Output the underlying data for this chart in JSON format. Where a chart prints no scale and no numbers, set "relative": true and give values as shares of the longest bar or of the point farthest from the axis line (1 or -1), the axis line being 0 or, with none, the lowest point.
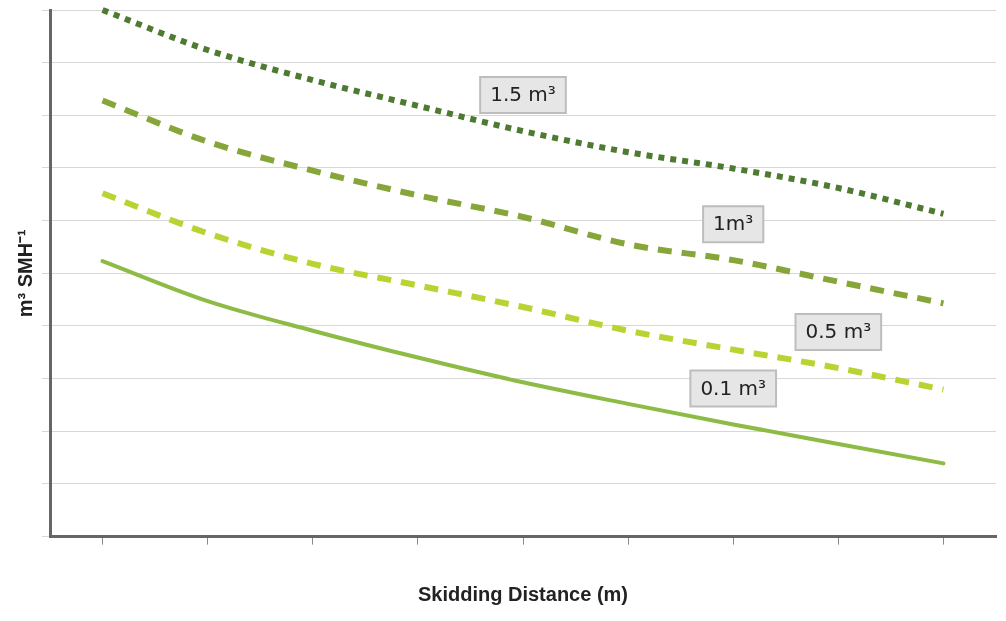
{
  "chart_data": {
    "type": "line",
    "relative": true,
    "xlabel": "Skidding Distance (m)",
    "ylabel": "m³ SMH⁻¹",
    "categories": [
      null,
      null,
      null,
      null,
      null,
      null,
      null,
      null,
      null
    ],
    "series": [
      {
        "name": "1.5 m³",
        "color": "#4f7a32",
        "line_style": "dotted",
        "values": [
          1,
          0.924,
          0.867,
          0.818,
          0.77,
          0.73,
          0.699,
          0.662,
          0.613
        ]
      },
      {
        "name": "1m³",
        "color": "#86a63a",
        "line_style": "dashed",
        "values": [
          0.828,
          0.75,
          0.695,
          0.648,
          0.607,
          0.555,
          0.525,
          0.484,
          0.443
        ]
      },
      {
        "name": "0.5 m³",
        "color": "#b8d432",
        "line_style": "dashed",
        "values": [
          0.652,
          0.576,
          0.518,
          0.477,
          0.436,
          0.391,
          0.355,
          0.32,
          0.279
        ]
      },
      {
        "name": "0.1 m³",
        "color": "#8dbb45",
        "line_style": "solid",
        "values": [
          0.523,
          0.447,
          0.391,
          0.34,
          0.293,
          0.252,
          0.213,
          0.176,
          0.139
        ]
      }
    ],
    "grid": "y",
    "marker": "none"
  }
}
